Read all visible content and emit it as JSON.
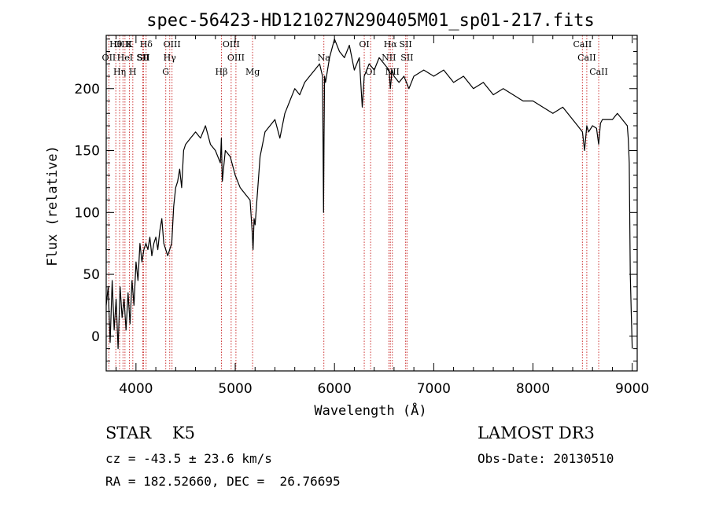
{
  "chart_data": {
    "type": "line",
    "title": "spec-56423-HD121027N290405M01_sp01-217.fits",
    "xlabel": "Wavelength (Å)",
    "ylabel": "Flux (relative)",
    "xlim": [
      3700,
      9050
    ],
    "ylim": [
      -28,
      243
    ],
    "xticks": [
      4000,
      5000,
      6000,
      7000,
      8000,
      9000
    ],
    "yticks": [
      0,
      50,
      100,
      150,
      200
    ],
    "grid": false,
    "series": [
      {
        "x": [
          3700,
          3720,
          3740,
          3760,
          3780,
          3800,
          3820,
          3840,
          3860,
          3880,
          3900,
          3920,
          3940,
          3960,
          3980,
          4000,
          4020,
          4040,
          4060,
          4080,
          4100,
          4120,
          4140,
          4160,
          4180,
          4200,
          4220,
          4240,
          4260,
          4280,
          4300,
          4320,
          4340,
          4360,
          4380,
          4400,
          4420,
          4440,
          4460,
          4480,
          4500,
          4550,
          4600,
          4650,
          4700,
          4750,
          4800,
          4850,
          4860,
          4870,
          4900,
          4950,
          5000,
          5050,
          5100,
          5150,
          5170,
          5180,
          5190,
          5200,
          5250,
          5300,
          5350,
          5400,
          5450,
          5500,
          5550,
          5600,
          5650,
          5700,
          5750,
          5800,
          5850,
          5880,
          5890,
          5895,
          5900,
          5910,
          5950,
          6000,
          6050,
          6100,
          6150,
          6200,
          6250,
          6280,
          6300,
          6350,
          6400,
          6450,
          6500,
          6550,
          6563,
          6580,
          6600,
          6650,
          6700,
          6750,
          6800,
          6900,
          7000,
          7100,
          7200,
          7300,
          7400,
          7500,
          7600,
          7700,
          7800,
          7900,
          8000,
          8100,
          8200,
          8300,
          8400,
          8450,
          8498,
          8520,
          8542,
          8560,
          8600,
          8640,
          8662,
          8680,
          8700,
          8800,
          8850,
          8900,
          8950,
          8960,
          8970,
          8980,
          8990,
          9000
        ],
        "y": [
          25,
          40,
          -5,
          45,
          5,
          30,
          -10,
          40,
          15,
          30,
          5,
          35,
          10,
          45,
          25,
          60,
          45,
          75,
          60,
          70,
          75,
          70,
          80,
          65,
          75,
          80,
          70,
          85,
          95,
          75,
          70,
          65,
          70,
          75,
          105,
          120,
          125,
          135,
          120,
          150,
          155,
          160,
          165,
          160,
          170,
          155,
          150,
          140,
          160,
          125,
          150,
          145,
          130,
          120,
          115,
          110,
          85,
          70,
          95,
          90,
          145,
          165,
          170,
          175,
          160,
          180,
          190,
          200,
          195,
          205,
          210,
          215,
          220,
          210,
          100,
          160,
          210,
          205,
          225,
          240,
          230,
          225,
          235,
          215,
          225,
          185,
          210,
          220,
          215,
          225,
          220,
          215,
          200,
          215,
          210,
          205,
          210,
          200,
          210,
          215,
          210,
          215,
          205,
          210,
          200,
          205,
          195,
          200,
          195,
          190,
          190,
          185,
          180,
          185,
          175,
          170,
          165,
          150,
          170,
          165,
          170,
          168,
          155,
          172,
          175,
          175,
          180,
          175,
          170,
          160,
          140,
          50,
          20,
          -10
        ]
      }
    ],
    "line_labels": [
      "Hθ",
      "OII",
      "OIII",
      "Hη",
      "K",
      "HeI",
      "SII",
      "H",
      "Hδ",
      "SII",
      "OIII",
      "Hγ",
      "G",
      "Hβ",
      "OIII",
      "OIII",
      "Mg",
      "Na",
      "OI",
      "OI",
      "Hα",
      "NII",
      "NII",
      "SII",
      "SII",
      "CaII",
      "CaII",
      "CaII"
    ]
  },
  "info": {
    "class_line": "STAR    K5",
    "survey": "LAMOST DR3",
    "cz_line": "cz = -43.5 ± 23.6 km/s",
    "obs_date_line": "Obs-Date: 20130510",
    "radec_line": "RA = 182.52660, DEC =  26.76695"
  }
}
